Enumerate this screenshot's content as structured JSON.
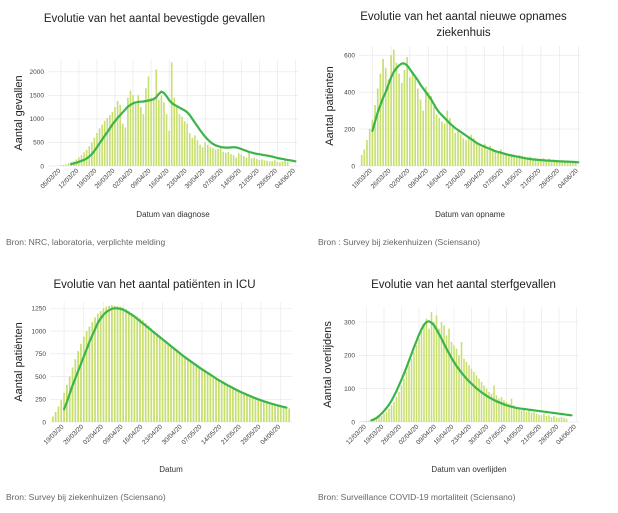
{
  "colors": {
    "bars": "#c7df6e",
    "trend": "#3bb54a",
    "grid": "#e6e6e6"
  },
  "chart_data": [
    {
      "type": "bar",
      "title_lines": [
        "Evolutie van het aantal bevestigde gevallen"
      ],
      "ylabel": "Aantal gevallen",
      "xlabel": "Datum van diagnose",
      "source": "Bron: NRC, laboratoria, verplichte melding",
      "ylim": [
        0,
        2250
      ],
      "yticks": [
        0,
        500,
        1000,
        1500,
        2000
      ],
      "xticks": [
        "05/03/20",
        "12/03/20",
        "19/03/20",
        "26/03/20",
        "02/04/20",
        "09/04/20",
        "16/04/20",
        "23/04/20",
        "30/04/20",
        "07/05/20",
        "14/05/20",
        "21/05/20",
        "28/05/20",
        "04/06/20"
      ],
      "series": [
        {
          "kind": "bars",
          "x_start": "01/03/20",
          "values": [
            2,
            3,
            5,
            10,
            15,
            25,
            35,
            60,
            80,
            100,
            140,
            180,
            230,
            290,
            340,
            420,
            500,
            600,
            700,
            800,
            880,
            960,
            1020,
            1080,
            1150,
            1250,
            1380,
            1300,
            900,
            820,
            1450,
            1600,
            1500,
            1320,
            1500,
            1250,
            1100,
            1650,
            1900,
            1450,
            1450,
            2050,
            1400,
            1500,
            1350,
            1100,
            750,
            2200,
            1450,
            1300,
            1100,
            1050,
            950,
            900,
            700,
            600,
            650,
            550,
            450,
            400,
            500,
            450,
            400,
            380,
            350,
            360,
            400,
            300,
            280,
            300,
            250,
            230,
            180,
            270,
            240,
            210,
            180,
            300,
            160,
            180,
            150,
            130,
            140,
            120,
            110,
            100,
            100,
            120,
            90,
            80,
            100,
            120,
            95
          ]
        },
        {
          "kind": "line",
          "x_start": "09/03/20",
          "values": [
            40,
            55,
            70,
            90,
            110,
            130,
            160,
            200,
            250,
            320,
            400,
            480,
            560,
            640,
            720,
            800,
            880,
            950,
            1020,
            1080,
            1140,
            1200,
            1260,
            1300,
            1330,
            1350,
            1360,
            1365,
            1370,
            1380,
            1390,
            1400,
            1420,
            1460,
            1530,
            1580,
            1550,
            1480,
            1400,
            1340,
            1300,
            1270,
            1240,
            1210,
            1180,
            1140,
            1080,
            1000,
            920,
            840,
            760,
            690,
            620,
            560,
            510,
            470,
            440,
            420,
            405,
            395,
            390,
            390,
            395,
            400,
            395,
            380,
            360,
            340,
            320,
            300,
            285,
            270,
            260,
            250,
            240,
            230,
            220,
            210,
            200,
            185,
            170,
            160,
            150,
            140,
            130,
            120,
            110,
            100
          ]
        }
      ]
    },
    {
      "type": "bar",
      "title_lines": [
        "Evolutie van het aantal nieuwe opnames",
        "ziekenhuis"
      ],
      "ylabel": "Aantal patiënten",
      "xlabel": "Datum van opname",
      "source": "Bron : Survey bij ziekenhuizen (Sciensano)",
      "ylim": [
        0,
        650
      ],
      "yticks": [
        0,
        200,
        400,
        600
      ],
      "xticks": [
        "19/03/20",
        "26/03/20",
        "02/04/20",
        "09/04/20",
        "16/04/20",
        "23/04/20",
        "30/04/20",
        "07/05/20",
        "14/05/20",
        "21/05/20",
        "28/05/20",
        "04/06/20"
      ],
      "series": [
        {
          "kind": "bars",
          "x_start": "15/03/20",
          "values": [
            60,
            90,
            140,
            200,
            250,
            330,
            420,
            500,
            580,
            530,
            470,
            600,
            630,
            560,
            500,
            450,
            520,
            590,
            480,
            500,
            480,
            420,
            360,
            300,
            430,
            400,
            380,
            320,
            280,
            260,
            240,
            230,
            300,
            260,
            210,
            180,
            190,
            170,
            150,
            140,
            160,
            170,
            150,
            130,
            110,
            100,
            120,
            90,
            110,
            95,
            80,
            70,
            90,
            75,
            70,
            60,
            65,
            55,
            50,
            60,
            55,
            50,
            45,
            50,
            40,
            45,
            40,
            38,
            42,
            35,
            40,
            30,
            35,
            32,
            30,
            28,
            25,
            30,
            28,
            25,
            20
          ]
        },
        {
          "kind": "line",
          "x_start": "19/03/20",
          "values": [
            190,
            240,
            290,
            330,
            370,
            400,
            440,
            480,
            510,
            530,
            545,
            555,
            555,
            545,
            525,
            505,
            485,
            465,
            440,
            420,
            400,
            380,
            360,
            335,
            310,
            290,
            275,
            260,
            245,
            230,
            218,
            205,
            195,
            185,
            175,
            165,
            155,
            145,
            135,
            125,
            117,
            110,
            104,
            98,
            92,
            86,
            80,
            76,
            72,
            68,
            64,
            60,
            57,
            54,
            51,
            48,
            45,
            42,
            40,
            38,
            36,
            34,
            33,
            32,
            31,
            30,
            29,
            28,
            27,
            26,
            25,
            25,
            24,
            24,
            23,
            22,
            21,
            20
          ]
        }
      ]
    },
    {
      "type": "bar",
      "title_lines": [
        "Evolutie van het aantal patiënten in ICU"
      ],
      "ylabel": "Aantal patiënten",
      "xlabel": "Datum",
      "source": "Bron: Survey bij ziekenhuizen (Sciensano)",
      "ylim": [
        0,
        1320
      ],
      "yticks": [
        0,
        250,
        500,
        750,
        1000,
        1250
      ],
      "xticks": [
        "19/03/20",
        "26/03/20",
        "02/04/20",
        "09/04/20",
        "16/04/20",
        "23/04/20",
        "30/04/20",
        "07/05/20",
        "14/05/20",
        "21/05/20",
        "28/05/20",
        "04/06/20"
      ],
      "series": [
        {
          "kind": "bars",
          "x_start": "15/03/20",
          "values": [
            60,
            110,
            170,
            240,
            320,
            410,
            500,
            600,
            690,
            780,
            860,
            940,
            1000,
            1050,
            1100,
            1150,
            1190,
            1220,
            1250,
            1270,
            1280,
            1285,
            1280,
            1275,
            1270,
            1260,
            1240,
            1220,
            1200,
            1180,
            1160,
            1140,
            1120,
            1090,
            1060,
            1030,
            1000,
            970,
            940,
            910,
            880,
            850,
            820,
            800,
            780,
            760,
            740,
            715,
            690,
            670,
            650,
            630,
            610,
            590,
            570,
            550,
            530,
            510,
            490,
            470,
            450,
            430,
            410,
            395,
            380,
            360,
            345,
            330,
            315,
            300,
            290,
            275,
            260,
            250,
            240,
            228,
            218,
            208,
            198,
            190,
            180,
            172,
            165,
            158,
            150
          ]
        },
        {
          "kind": "line",
          "x_start": "19/03/20",
          "values": [
            140,
            220,
            310,
            400,
            480,
            560,
            640,
            720,
            800,
            880,
            950,
            1020,
            1090,
            1140,
            1180,
            1210,
            1230,
            1245,
            1252,
            1250,
            1245,
            1235,
            1220,
            1200,
            1180,
            1160,
            1135,
            1110,
            1085,
            1060,
            1035,
            1010,
            985,
            960,
            935,
            910,
            885,
            860,
            835,
            810,
            785,
            760,
            735,
            712,
            690,
            668,
            646,
            624,
            602,
            580,
            560,
            540,
            520,
            500,
            480,
            460,
            442,
            424,
            406,
            390,
            374,
            358,
            342,
            328,
            314,
            300,
            287,
            274,
            262,
            250,
            239,
            228,
            218,
            208,
            199,
            190,
            182,
            174,
            166,
            158
          ]
        }
      ]
    },
    {
      "type": "bar",
      "title_lines": [
        "Evolutie van het aantal sterfgevallen"
      ],
      "ylabel": "Aantal overlijdens",
      "xlabel": "Datum van overlijden",
      "source": "Bron: Surveillance COVID-19 mortaliteit (Sciensano)",
      "ylim": [
        0,
        345
      ],
      "yticks": [
        0,
        100,
        200,
        300
      ],
      "xticks": [
        "12/03/20",
        "19/03/20",
        "26/03/20",
        "02/04/20",
        "09/04/20",
        "16/04/20",
        "23/04/20",
        "30/04/20",
        "07/05/20",
        "14/05/20",
        "21/05/20",
        "28/05/20",
        "04/06/20"
      ],
      "series": [
        {
          "kind": "bars",
          "x_start": "10/03/20",
          "values": [
            1,
            2,
            3,
            4,
            6,
            8,
            10,
            14,
            18,
            24,
            30,
            40,
            50,
            60,
            75,
            90,
            110,
            130,
            150,
            170,
            190,
            210,
            230,
            250,
            270,
            290,
            310,
            280,
            330,
            300,
            320,
            280,
            300,
            290,
            260,
            280,
            240,
            230,
            220,
            200,
            240,
            190,
            180,
            170,
            160,
            150,
            140,
            130,
            120,
            110,
            100,
            90,
            85,
            110,
            80,
            70,
            75,
            65,
            60,
            55,
            70,
            50,
            45,
            40,
            35,
            40,
            30,
            35,
            28,
            30,
            25,
            22,
            20,
            25,
            18,
            20,
            15,
            18,
            14,
            12,
            15,
            12,
            10
          ]
        },
        {
          "kind": "line",
          "x_start": "14/03/20",
          "values": [
            5,
            8,
            12,
            18,
            25,
            33,
            42,
            52,
            64,
            78,
            93,
            110,
            127,
            145,
            164,
            184,
            204,
            224,
            243,
            262,
            278,
            292,
            300,
            302,
            298,
            290,
            278,
            264,
            250,
            235,
            220,
            206,
            192,
            180,
            168,
            158,
            148,
            139,
            130,
            122,
            115,
            108,
            101,
            95,
            89,
            84,
            79,
            74,
            70,
            66,
            62,
            59,
            56,
            53,
            50,
            48,
            46,
            44,
            42,
            41,
            40,
            39,
            38,
            37,
            36,
            35,
            34,
            33,
            32,
            31,
            30,
            29,
            28,
            27,
            26,
            25,
            24,
            23,
            22,
            21,
            20
          ]
        }
      ]
    }
  ]
}
